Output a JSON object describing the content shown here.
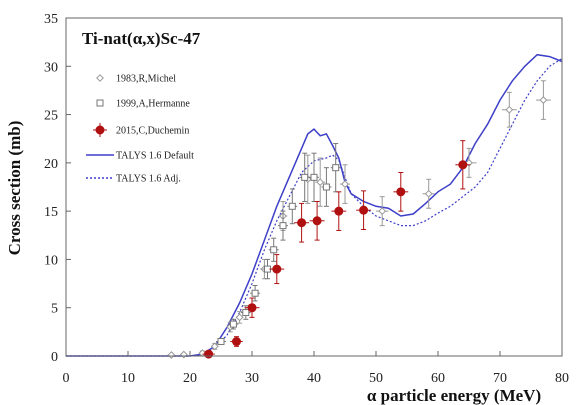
{
  "chart_data": {
    "type": "scatter",
    "title": "Ti-nat(α,x)Sc-47",
    "xlabel": "α particle energy (MeV)",
    "ylabel": "Cross section (mb)",
    "xlim": [
      0,
      80
    ],
    "ylim": [
      0,
      35
    ],
    "xticks": [
      "0",
      "10",
      "20",
      "30",
      "40",
      "50",
      "60",
      "70",
      "80"
    ],
    "yticks": [
      "0",
      "5",
      "10",
      "15",
      "20",
      "25",
      "30",
      "35"
    ],
    "grid": false,
    "legend_position": "top-left",
    "series": [
      {
        "name": "1983,R,Michel",
        "kind": "points",
        "marker": "diamond",
        "color": "#999999",
        "points": [
          {
            "x": 17,
            "y": 0.1,
            "xerr": 0.6,
            "yerr": 0
          },
          {
            "x": 19,
            "y": 0.15,
            "xerr": 0.6,
            "yerr": 0
          },
          {
            "x": 22,
            "y": 0.3,
            "xerr": 0.6,
            "yerr": 0.2
          },
          {
            "x": 24,
            "y": 1.0,
            "xerr": 0.6,
            "yerr": 0.3
          },
          {
            "x": 26.5,
            "y": 3.0,
            "xerr": 0.6,
            "yerr": 0.5
          },
          {
            "x": 28,
            "y": 4.0,
            "xerr": 0.6,
            "yerr": 0.6
          },
          {
            "x": 32,
            "y": 9.0,
            "xerr": 0.7,
            "yerr": 1.0
          },
          {
            "x": 35,
            "y": 14.5,
            "xerr": 0.7,
            "yerr": 1.5
          },
          {
            "x": 39,
            "y": 18.3,
            "xerr": 0.8,
            "yerr": 2.5
          },
          {
            "x": 41,
            "y": 18.0,
            "xerr": 0.8,
            "yerr": 2.5
          },
          {
            "x": 45,
            "y": 17.8,
            "xerr": 0.8,
            "yerr": 2.0
          },
          {
            "x": 51,
            "y": 15.0,
            "xerr": 1.0,
            "yerr": 1.5
          },
          {
            "x": 58.5,
            "y": 16.8,
            "xerr": 1.0,
            "yerr": 1.5
          },
          {
            "x": 65,
            "y": 20.0,
            "xerr": 1.2,
            "yerr": 1.5
          },
          {
            "x": 71.5,
            "y": 25.5,
            "xerr": 1.2,
            "yerr": 1.8
          },
          {
            "x": 77,
            "y": 26.5,
            "xerr": 1.2,
            "yerr": 2.0
          }
        ]
      },
      {
        "name": "1999,A,Hermanne",
        "kind": "points",
        "marker": "square",
        "color": "#777777",
        "points": [
          {
            "x": 25,
            "y": 1.5,
            "xerr": 0.8,
            "yerr": 0.3
          },
          {
            "x": 27,
            "y": 3.3,
            "xerr": 0.8,
            "yerr": 0.5
          },
          {
            "x": 29,
            "y": 4.5,
            "xerr": 0.8,
            "yerr": 0.7
          },
          {
            "x": 30.5,
            "y": 6.5,
            "xerr": 0.8,
            "yerr": 0.8
          },
          {
            "x": 32.5,
            "y": 9.0,
            "xerr": 0.8,
            "yerr": 1.0
          },
          {
            "x": 33.5,
            "y": 11.0,
            "xerr": 0.8,
            "yerr": 1.2
          },
          {
            "x": 35,
            "y": 13.5,
            "xerr": 0.8,
            "yerr": 1.5
          },
          {
            "x": 36.5,
            "y": 15.5,
            "xerr": 0.8,
            "yerr": 1.8
          },
          {
            "x": 38.5,
            "y": 18.5,
            "xerr": 0.8,
            "yerr": 2.5
          },
          {
            "x": 40,
            "y": 18.5,
            "xerr": 0.8,
            "yerr": 2.5
          },
          {
            "x": 42,
            "y": 17.5,
            "xerr": 0.8,
            "yerr": 2.0
          },
          {
            "x": 43.5,
            "y": 19.5,
            "xerr": 0.8,
            "yerr": 2.5
          }
        ]
      },
      {
        "name": "2015,C,Duchemin",
        "kind": "points",
        "marker": "circle",
        "color": "#b01010",
        "points": [
          {
            "x": 23,
            "y": 0.2,
            "xerr": 1.0,
            "yerr": 0.3
          },
          {
            "x": 27.5,
            "y": 1.5,
            "xerr": 1.0,
            "yerr": 0.5
          },
          {
            "x": 30,
            "y": 5.0,
            "xerr": 1.2,
            "yerr": 1.0
          },
          {
            "x": 34,
            "y": 9.0,
            "xerr": 1.2,
            "yerr": 1.5
          },
          {
            "x": 38,
            "y": 13.8,
            "xerr": 1.2,
            "yerr": 2.0
          },
          {
            "x": 40.5,
            "y": 14.0,
            "xerr": 1.2,
            "yerr": 2.0
          },
          {
            "x": 44,
            "y": 15.0,
            "xerr": 1.2,
            "yerr": 2.0
          },
          {
            "x": 48,
            "y": 15.1,
            "xerr": 1.2,
            "yerr": 2.0
          },
          {
            "x": 54,
            "y": 17.0,
            "xerr": 1.2,
            "yerr": 2.0
          },
          {
            "x": 64,
            "y": 19.8,
            "xerr": 1.2,
            "yerr": 2.5
          }
        ]
      },
      {
        "name": "TALYS 1.6 Default",
        "kind": "line",
        "style": "solid",
        "color": "#3d3fc8",
        "x": [
          0,
          20,
          22,
          24,
          26,
          28,
          30,
          32,
          34,
          36,
          38,
          39,
          40,
          41,
          42,
          43,
          44,
          45,
          46,
          48,
          50,
          52,
          54,
          56,
          58,
          60,
          62,
          64,
          66,
          68,
          70,
          72,
          74,
          76,
          78,
          80
        ],
        "y": [
          0,
          0,
          0.2,
          1.0,
          3.0,
          5.5,
          8.5,
          12.0,
          15.5,
          18.5,
          21.5,
          23.0,
          23.5,
          22.8,
          23.0,
          21.8,
          20.5,
          18.0,
          16.8,
          16.0,
          15.5,
          15.3,
          14.5,
          14.7,
          15.8,
          17.0,
          17.8,
          19.5,
          22.0,
          24.0,
          26.5,
          28.5,
          30.0,
          31.2,
          31.0,
          30.5
        ]
      },
      {
        "name": "TALYS 1.6 Adj.",
        "kind": "line",
        "style": "dotted",
        "color": "#3d3fc8",
        "x": [
          0,
          20,
          22,
          24,
          26,
          28,
          30,
          32,
          34,
          36,
          38,
          40,
          42,
          43,
          44,
          45,
          46,
          48,
          50,
          52,
          54,
          56,
          58,
          60,
          62,
          64,
          66,
          68,
          70,
          72,
          74,
          76,
          78,
          80
        ],
        "y": [
          0,
          0,
          0.2,
          0.8,
          2.2,
          4.5,
          7.5,
          11.0,
          14.0,
          16.5,
          19.0,
          20.2,
          20.5,
          20.8,
          20.3,
          18.5,
          16.8,
          15.5,
          14.5,
          14.0,
          13.5,
          13.5,
          14.0,
          14.8,
          15.5,
          16.5,
          17.5,
          19.0,
          21.5,
          24.0,
          26.5,
          28.5,
          30.0,
          30.8
        ]
      }
    ]
  }
}
